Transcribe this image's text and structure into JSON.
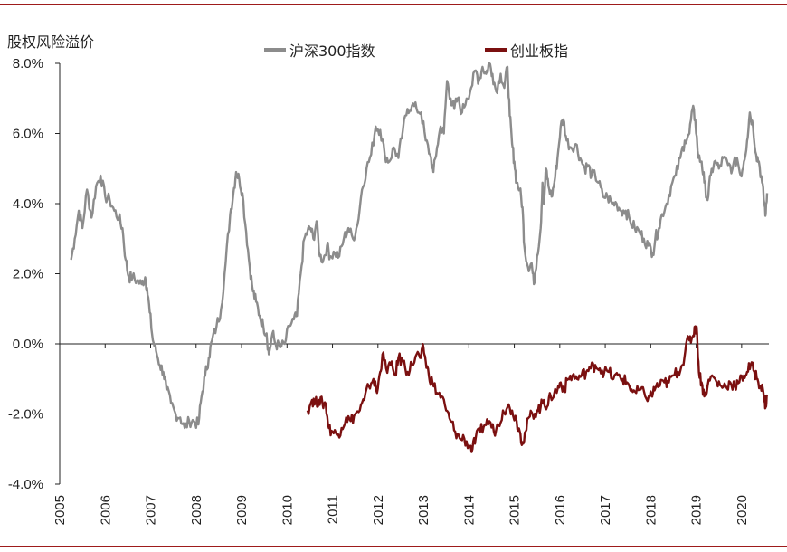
{
  "chart_data": {
    "type": "line",
    "ylabel": "股权风险溢价",
    "ylim": [
      -4.0,
      8.0
    ],
    "y_ticks": [
      8.0,
      6.0,
      4.0,
      2.0,
      0.0,
      -2.0,
      -4.0
    ],
    "y_tick_labels": [
      "8.0%",
      "6.0%",
      "4.0%",
      "2.0%",
      "0.0%",
      "-2.0%",
      "-4.0%"
    ],
    "x_tick_labels": [
      "2005",
      "2006",
      "2007",
      "2008",
      "2009",
      "2010",
      "2011",
      "2012",
      "2013",
      "2014",
      "2015",
      "2016",
      "2017",
      "2018",
      "2019",
      "2020"
    ],
    "xlim": [
      2005.0,
      2020.6
    ],
    "legend_position": "top",
    "series": [
      {
        "name": "沪深300指数",
        "color": "#8c8c8c",
        "points": [
          [
            2005.25,
            2.4
          ],
          [
            2005.33,
            3.0
          ],
          [
            2005.42,
            3.8
          ],
          [
            2005.5,
            3.3
          ],
          [
            2005.6,
            4.4
          ],
          [
            2005.7,
            3.6
          ],
          [
            2005.8,
            4.5
          ],
          [
            2005.9,
            4.8
          ],
          [
            2006.0,
            4.2
          ],
          [
            2006.1,
            4.1
          ],
          [
            2006.2,
            3.8
          ],
          [
            2006.3,
            3.6
          ],
          [
            2006.38,
            3.3
          ],
          [
            2006.45,
            2.4
          ],
          [
            2006.52,
            1.9
          ],
          [
            2006.6,
            1.9
          ],
          [
            2006.7,
            1.8
          ],
          [
            2006.8,
            1.7
          ],
          [
            2006.88,
            1.9
          ],
          [
            2006.92,
            1.6
          ],
          [
            2006.98,
            0.9
          ],
          [
            2007.05,
            0.1
          ],
          [
            2007.12,
            -0.2
          ],
          [
            2007.2,
            -0.6
          ],
          [
            2007.28,
            -0.8
          ],
          [
            2007.35,
            -1.3
          ],
          [
            2007.45,
            -1.7
          ],
          [
            2007.55,
            -2.0
          ],
          [
            2007.65,
            -2.1
          ],
          [
            2007.75,
            -2.4
          ],
          [
            2007.85,
            -2.2
          ],
          [
            2007.95,
            -2.2
          ],
          [
            2008.05,
            -2.3
          ],
          [
            2008.12,
            -1.5
          ],
          [
            2008.2,
            -0.9
          ],
          [
            2008.28,
            -0.4
          ],
          [
            2008.35,
            0.1
          ],
          [
            2008.45,
            0.5
          ],
          [
            2008.55,
            1.0
          ],
          [
            2008.65,
            2.3
          ],
          [
            2008.75,
            3.7
          ],
          [
            2008.82,
            4.3
          ],
          [
            2008.88,
            4.9
          ],
          [
            2008.95,
            4.7
          ],
          [
            2009.02,
            4.3
          ],
          [
            2009.1,
            3.2
          ],
          [
            2009.18,
            2.2
          ],
          [
            2009.25,
            1.5
          ],
          [
            2009.32,
            1.2
          ],
          [
            2009.4,
            0.8
          ],
          [
            2009.48,
            0.5
          ],
          [
            2009.55,
            0.3
          ],
          [
            2009.6,
            -0.3
          ],
          [
            2009.68,
            0.3
          ],
          [
            2009.75,
            0.0
          ],
          [
            2009.85,
            -0.1
          ],
          [
            2009.95,
            0.0
          ],
          [
            2010.05,
            0.5
          ],
          [
            2010.15,
            0.7
          ],
          [
            2010.22,
            0.8
          ],
          [
            2010.3,
            2.0
          ],
          [
            2010.38,
            3.0
          ],
          [
            2010.45,
            3.2
          ],
          [
            2010.52,
            3.3
          ],
          [
            2010.58,
            3.0
          ],
          [
            2010.65,
            3.5
          ],
          [
            2010.72,
            2.5
          ],
          [
            2010.8,
            2.4
          ],
          [
            2010.88,
            2.8
          ],
          [
            2010.95,
            2.5
          ],
          [
            2011.05,
            2.6
          ],
          [
            2011.15,
            2.5
          ],
          [
            2011.25,
            3.0
          ],
          [
            2011.35,
            3.3
          ],
          [
            2011.45,
            3.0
          ],
          [
            2011.55,
            3.4
          ],
          [
            2011.65,
            4.4
          ],
          [
            2011.75,
            5.0
          ],
          [
            2011.85,
            5.4
          ],
          [
            2011.95,
            6.2
          ],
          [
            2012.05,
            6.1
          ],
          [
            2012.15,
            5.4
          ],
          [
            2012.25,
            5.2
          ],
          [
            2012.35,
            5.6
          ],
          [
            2012.45,
            5.3
          ],
          [
            2012.55,
            6.1
          ],
          [
            2012.65,
            6.7
          ],
          [
            2012.75,
            6.8
          ],
          [
            2012.85,
            6.7
          ],
          [
            2012.95,
            6.6
          ],
          [
            2013.05,
            5.8
          ],
          [
            2013.15,
            5.4
          ],
          [
            2013.22,
            4.9
          ],
          [
            2013.3,
            5.6
          ],
          [
            2013.38,
            6.2
          ],
          [
            2013.45,
            6.0
          ],
          [
            2013.52,
            7.5
          ],
          [
            2013.6,
            7.0
          ],
          [
            2013.68,
            6.7
          ],
          [
            2013.75,
            7.0
          ],
          [
            2013.85,
            6.6
          ],
          [
            2013.95,
            7.0
          ],
          [
            2014.05,
            7.3
          ],
          [
            2014.15,
            7.8
          ],
          [
            2014.22,
            7.5
          ],
          [
            2014.3,
            7.9
          ],
          [
            2014.38,
            7.7
          ],
          [
            2014.45,
            8.0
          ],
          [
            2014.52,
            7.7
          ],
          [
            2014.6,
            7.2
          ],
          [
            2014.7,
            7.7
          ],
          [
            2014.78,
            7.3
          ],
          [
            2014.85,
            7.9
          ],
          [
            2014.9,
            6.5
          ],
          [
            2014.95,
            5.7
          ],
          [
            2015.0,
            5.2
          ],
          [
            2015.05,
            4.6
          ],
          [
            2015.12,
            4.4
          ],
          [
            2015.18,
            3.9
          ],
          [
            2015.22,
            2.8
          ],
          [
            2015.3,
            2.2
          ],
          [
            2015.38,
            2.3
          ],
          [
            2015.43,
            1.7
          ],
          [
            2015.5,
            2.5
          ],
          [
            2015.58,
            3.3
          ],
          [
            2015.62,
            4.6
          ],
          [
            2015.65,
            4.0
          ],
          [
            2015.7,
            5.0
          ],
          [
            2015.75,
            4.5
          ],
          [
            2015.82,
            4.2
          ],
          [
            2015.88,
            4.6
          ],
          [
            2015.95,
            5.3
          ],
          [
            2016.02,
            6.2
          ],
          [
            2016.08,
            6.4
          ],
          [
            2016.15,
            5.8
          ],
          [
            2016.25,
            5.6
          ],
          [
            2016.35,
            5.7
          ],
          [
            2016.45,
            5.3
          ],
          [
            2016.55,
            5.0
          ],
          [
            2016.62,
            5.1
          ],
          [
            2016.7,
            4.8
          ],
          [
            2016.78,
            4.8
          ],
          [
            2016.85,
            4.6
          ],
          [
            2016.95,
            4.2
          ],
          [
            2017.05,
            4.2
          ],
          [
            2017.15,
            4.0
          ],
          [
            2017.25,
            4.0
          ],
          [
            2017.35,
            3.8
          ],
          [
            2017.45,
            3.8
          ],
          [
            2017.55,
            3.5
          ],
          [
            2017.65,
            3.3
          ],
          [
            2017.75,
            3.2
          ],
          [
            2017.85,
            3.0
          ],
          [
            2017.95,
            2.8
          ],
          [
            2018.05,
            2.6
          ],
          [
            2018.1,
            3.0
          ],
          [
            2018.18,
            3.3
          ],
          [
            2018.25,
            3.7
          ],
          [
            2018.35,
            4.0
          ],
          [
            2018.45,
            4.5
          ],
          [
            2018.55,
            4.8
          ],
          [
            2018.65,
            5.3
          ],
          [
            2018.75,
            5.8
          ],
          [
            2018.85,
            6.0
          ],
          [
            2018.92,
            6.7
          ],
          [
            2018.98,
            6.4
          ],
          [
            2019.05,
            5.3
          ],
          [
            2019.12,
            5.2
          ],
          [
            2019.18,
            4.6
          ],
          [
            2019.25,
            4.1
          ],
          [
            2019.32,
            4.8
          ],
          [
            2019.4,
            5.2
          ],
          [
            2019.5,
            5.0
          ],
          [
            2019.6,
            5.3
          ],
          [
            2019.7,
            5.1
          ],
          [
            2019.8,
            5.0
          ],
          [
            2019.9,
            5.3
          ],
          [
            2019.98,
            4.8
          ],
          [
            2020.05,
            5.2
          ],
          [
            2020.12,
            5.8
          ],
          [
            2020.18,
            6.6
          ],
          [
            2020.25,
            6.2
          ],
          [
            2020.32,
            5.4
          ],
          [
            2020.38,
            5.2
          ],
          [
            2020.45,
            4.6
          ],
          [
            2020.5,
            4.0
          ],
          [
            2020.53,
            3.7
          ],
          [
            2020.56,
            4.3
          ]
        ]
      },
      {
        "name": "创业板指",
        "color": "#7b1010",
        "points": [
          [
            2010.45,
            -1.9
          ],
          [
            2010.55,
            -1.6
          ],
          [
            2010.62,
            -1.7
          ],
          [
            2010.7,
            -1.6
          ],
          [
            2010.78,
            -1.7
          ],
          [
            2010.85,
            -1.7
          ],
          [
            2010.92,
            -2.4
          ],
          [
            2011.0,
            -2.5
          ],
          [
            2011.1,
            -2.6
          ],
          [
            2011.2,
            -2.4
          ],
          [
            2011.3,
            -2.1
          ],
          [
            2011.4,
            -2.2
          ],
          [
            2011.5,
            -2.0
          ],
          [
            2011.6,
            -1.9
          ],
          [
            2011.7,
            -1.6
          ],
          [
            2011.8,
            -1.2
          ],
          [
            2011.9,
            -1.0
          ],
          [
            2011.98,
            -1.4
          ],
          [
            2012.05,
            -0.8
          ],
          [
            2012.1,
            -0.3
          ],
          [
            2012.18,
            -0.7
          ],
          [
            2012.28,
            -0.6
          ],
          [
            2012.38,
            -0.9
          ],
          [
            2012.45,
            -0.4
          ],
          [
            2012.55,
            -0.5
          ],
          [
            2012.65,
            -0.8
          ],
          [
            2012.75,
            -0.6
          ],
          [
            2012.85,
            -0.3
          ],
          [
            2012.95,
            -0.4
          ],
          [
            2013.0,
            -0.1
          ],
          [
            2013.05,
            -0.5
          ],
          [
            2013.12,
            -0.9
          ],
          [
            2013.2,
            -1.1
          ],
          [
            2013.3,
            -1.4
          ],
          [
            2013.4,
            -1.5
          ],
          [
            2013.5,
            -1.9
          ],
          [
            2013.6,
            -2.2
          ],
          [
            2013.7,
            -2.5
          ],
          [
            2013.8,
            -2.7
          ],
          [
            2013.9,
            -2.7
          ],
          [
            2014.0,
            -2.9
          ],
          [
            2014.08,
            -3.0
          ],
          [
            2014.15,
            -2.7
          ],
          [
            2014.25,
            -2.5
          ],
          [
            2014.35,
            -2.3
          ],
          [
            2014.45,
            -2.2
          ],
          [
            2014.55,
            -2.5
          ],
          [
            2014.65,
            -2.3
          ],
          [
            2014.75,
            -1.9
          ],
          [
            2014.85,
            -1.8
          ],
          [
            2014.95,
            -1.9
          ],
          [
            2015.05,
            -2.2
          ],
          [
            2015.12,
            -2.5
          ],
          [
            2015.18,
            -2.8
          ],
          [
            2015.25,
            -2.5
          ],
          [
            2015.32,
            -2.1
          ],
          [
            2015.4,
            -2.0
          ],
          [
            2015.5,
            -1.9
          ],
          [
            2015.58,
            -1.8
          ],
          [
            2015.65,
            -1.6
          ],
          [
            2015.72,
            -1.8
          ],
          [
            2015.8,
            -1.5
          ],
          [
            2015.88,
            -1.4
          ],
          [
            2015.95,
            -1.3
          ],
          [
            2016.02,
            -1.1
          ],
          [
            2016.1,
            -1.3
          ],
          [
            2016.18,
            -1.0
          ],
          [
            2016.28,
            -0.9
          ],
          [
            2016.38,
            -1.0
          ],
          [
            2016.48,
            -0.9
          ],
          [
            2016.58,
            -0.8
          ],
          [
            2016.68,
            -0.7
          ],
          [
            2016.78,
            -0.6
          ],
          [
            2016.88,
            -0.7
          ],
          [
            2016.98,
            -0.8
          ],
          [
            2017.08,
            -0.8
          ],
          [
            2017.18,
            -1.0
          ],
          [
            2017.28,
            -0.9
          ],
          [
            2017.38,
            -1.0
          ],
          [
            2017.48,
            -1.1
          ],
          [
            2017.58,
            -1.3
          ],
          [
            2017.68,
            -1.4
          ],
          [
            2017.78,
            -1.3
          ],
          [
            2017.88,
            -1.5
          ],
          [
            2017.98,
            -1.5
          ],
          [
            2018.05,
            -1.4
          ],
          [
            2018.12,
            -1.2
          ],
          [
            2018.2,
            -1.2
          ],
          [
            2018.3,
            -1.1
          ],
          [
            2018.4,
            -1.1
          ],
          [
            2018.5,
            -0.9
          ],
          [
            2018.6,
            -0.8
          ],
          [
            2018.7,
            -0.6
          ],
          [
            2018.78,
            0.0
          ],
          [
            2018.85,
            0.1
          ],
          [
            2018.92,
            0.2
          ],
          [
            2018.98,
            0.5
          ],
          [
            2019.02,
            0.3
          ],
          [
            2019.06,
            -0.8
          ],
          [
            2019.12,
            -1.1
          ],
          [
            2019.18,
            -1.5
          ],
          [
            2019.25,
            -1.2
          ],
          [
            2019.35,
            -0.9
          ],
          [
            2019.45,
            -1.1
          ],
          [
            2019.55,
            -1.2
          ],
          [
            2019.65,
            -1.2
          ],
          [
            2019.75,
            -1.1
          ],
          [
            2019.85,
            -1.2
          ],
          [
            2019.95,
            -1.1
          ],
          [
            2020.05,
            -0.9
          ],
          [
            2020.12,
            -0.8
          ],
          [
            2020.2,
            -0.6
          ],
          [
            2020.28,
            -0.8
          ],
          [
            2020.35,
            -1.0
          ],
          [
            2020.42,
            -1.2
          ],
          [
            2020.48,
            -1.4
          ],
          [
            2020.53,
            -1.8
          ],
          [
            2020.56,
            -1.5
          ]
        ]
      }
    ]
  }
}
